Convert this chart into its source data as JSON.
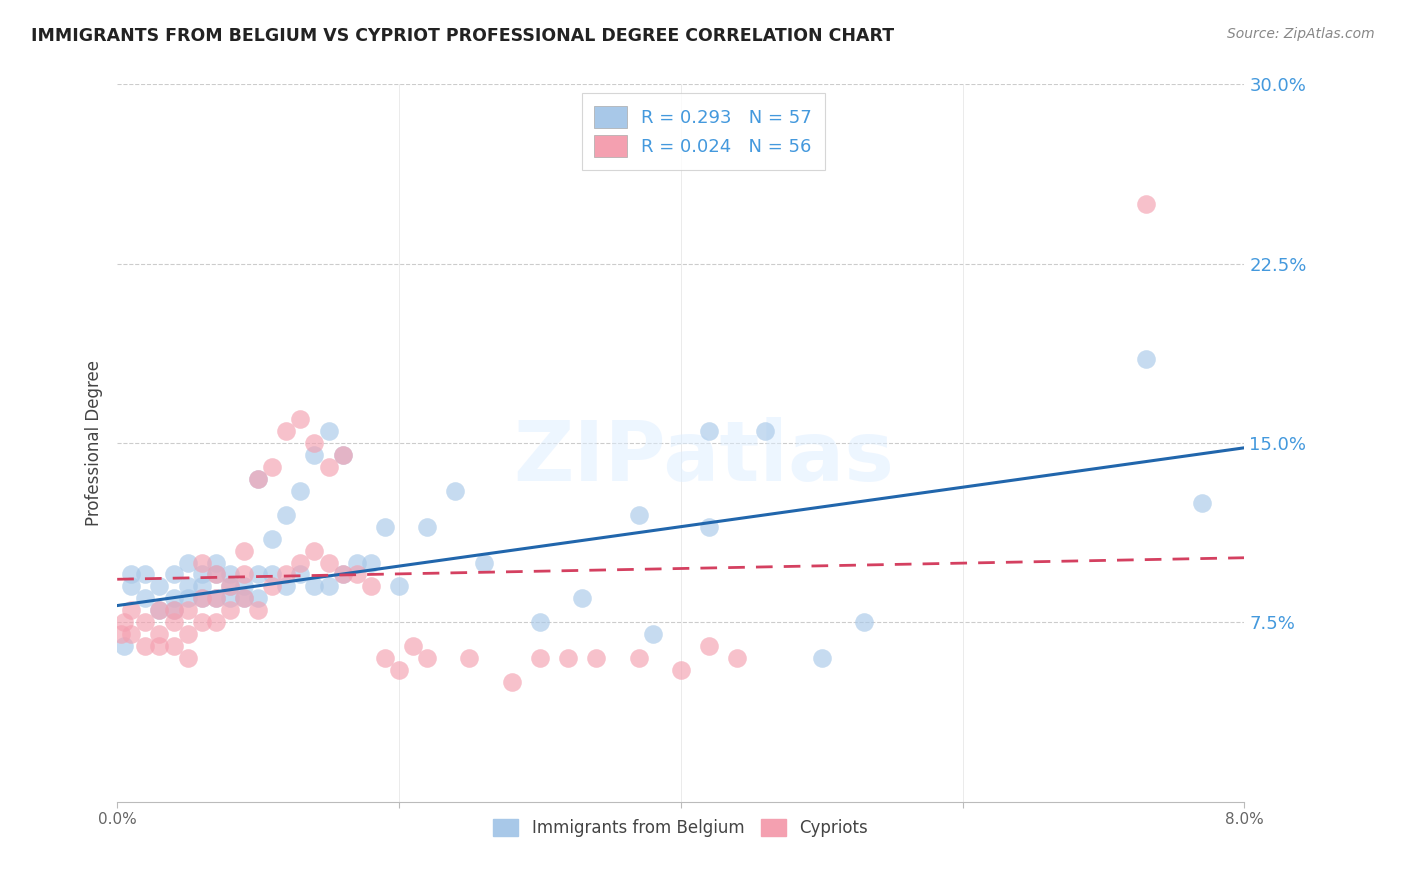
{
  "title": "IMMIGRANTS FROM BELGIUM VS CYPRIOT PROFESSIONAL DEGREE CORRELATION CHART",
  "source": "Source: ZipAtlas.com",
  "ylabel": "Professional Degree",
  "xmin": 0.0,
  "xmax": 0.08,
  "ymin": 0.0,
  "ymax": 0.3,
  "yticks": [
    0.075,
    0.15,
    0.225,
    0.3
  ],
  "ytick_labels": [
    "7.5%",
    "15.0%",
    "22.5%",
    "30.0%"
  ],
  "blue_color": "#a8c8e8",
  "pink_color": "#f4a0b0",
  "blue_line_color": "#2166ac",
  "pink_line_color": "#d44060",
  "axis_label_color": "#4499dd",
  "watermark": "ZIPatlas",
  "blue_line_x0": 0.0,
  "blue_line_x1": 0.08,
  "blue_line_y0": 0.082,
  "blue_line_y1": 0.148,
  "pink_line_x0": 0.0,
  "pink_line_x1": 0.08,
  "pink_line_y0": 0.093,
  "pink_line_y1": 0.102,
  "blue_scatter_x": [
    0.0005,
    0.001,
    0.001,
    0.002,
    0.002,
    0.003,
    0.003,
    0.004,
    0.004,
    0.004,
    0.005,
    0.005,
    0.005,
    0.006,
    0.006,
    0.006,
    0.007,
    0.007,
    0.007,
    0.008,
    0.008,
    0.008,
    0.009,
    0.009,
    0.01,
    0.01,
    0.01,
    0.011,
    0.011,
    0.012,
    0.012,
    0.013,
    0.013,
    0.014,
    0.014,
    0.015,
    0.015,
    0.016,
    0.016,
    0.017,
    0.018,
    0.019,
    0.02,
    0.022,
    0.024,
    0.026,
    0.03,
    0.033,
    0.037,
    0.038,
    0.042,
    0.042,
    0.046,
    0.05,
    0.053,
    0.073,
    0.077
  ],
  "blue_scatter_y": [
    0.065,
    0.095,
    0.09,
    0.085,
    0.095,
    0.08,
    0.09,
    0.085,
    0.095,
    0.08,
    0.085,
    0.09,
    0.1,
    0.085,
    0.09,
    0.095,
    0.085,
    0.095,
    0.1,
    0.085,
    0.09,
    0.095,
    0.085,
    0.09,
    0.095,
    0.085,
    0.135,
    0.095,
    0.11,
    0.09,
    0.12,
    0.095,
    0.13,
    0.09,
    0.145,
    0.09,
    0.155,
    0.095,
    0.145,
    0.1,
    0.1,
    0.115,
    0.09,
    0.115,
    0.13,
    0.1,
    0.075,
    0.085,
    0.12,
    0.07,
    0.115,
    0.155,
    0.155,
    0.06,
    0.075,
    0.185,
    0.125
  ],
  "pink_scatter_x": [
    0.0003,
    0.0005,
    0.001,
    0.001,
    0.002,
    0.002,
    0.003,
    0.003,
    0.003,
    0.004,
    0.004,
    0.004,
    0.005,
    0.005,
    0.005,
    0.006,
    0.006,
    0.006,
    0.007,
    0.007,
    0.007,
    0.008,
    0.008,
    0.009,
    0.009,
    0.009,
    0.01,
    0.01,
    0.011,
    0.011,
    0.012,
    0.012,
    0.013,
    0.013,
    0.014,
    0.014,
    0.015,
    0.015,
    0.016,
    0.016,
    0.017,
    0.018,
    0.019,
    0.02,
    0.021,
    0.022,
    0.025,
    0.028,
    0.03,
    0.032,
    0.034,
    0.037,
    0.04,
    0.042,
    0.044,
    0.073
  ],
  "pink_scatter_y": [
    0.07,
    0.075,
    0.08,
    0.07,
    0.065,
    0.075,
    0.08,
    0.065,
    0.07,
    0.08,
    0.075,
    0.065,
    0.08,
    0.07,
    0.06,
    0.085,
    0.075,
    0.1,
    0.085,
    0.075,
    0.095,
    0.08,
    0.09,
    0.085,
    0.105,
    0.095,
    0.08,
    0.135,
    0.09,
    0.14,
    0.095,
    0.155,
    0.1,
    0.16,
    0.105,
    0.15,
    0.1,
    0.14,
    0.095,
    0.145,
    0.095,
    0.09,
    0.06,
    0.055,
    0.065,
    0.06,
    0.06,
    0.05,
    0.06,
    0.06,
    0.06,
    0.06,
    0.055,
    0.065,
    0.06,
    0.25
  ]
}
